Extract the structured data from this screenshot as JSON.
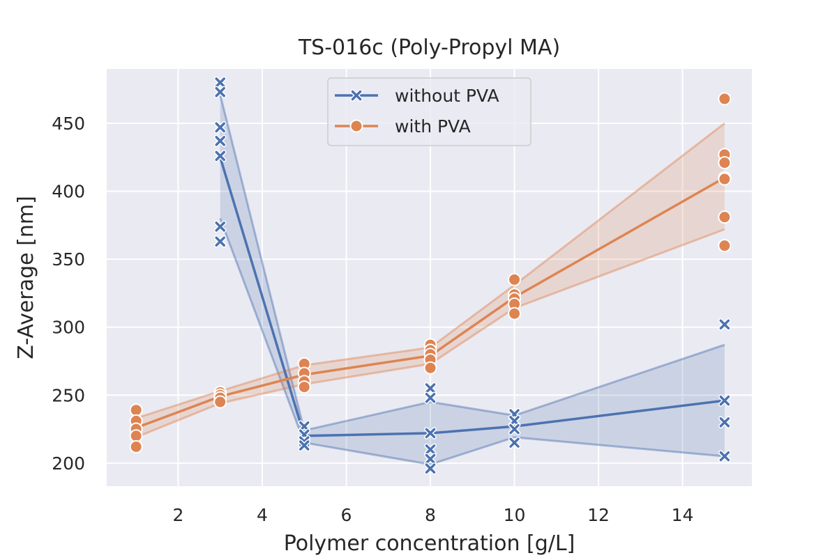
{
  "chart_data": {
    "type": "line",
    "title": "TS-016c (Poly-Propyl MA)",
    "xlabel": "Polymer concentration [g/L]",
    "ylabel": "Z-Average [nm]",
    "xlim": [
      0.3,
      15.65
    ],
    "ylim": [
      183,
      490
    ],
    "x_ticks": [
      2,
      4,
      6,
      8,
      10,
      12,
      14
    ],
    "y_ticks": [
      200,
      250,
      300,
      350,
      400,
      450
    ],
    "grid": true,
    "legend_position": "top-center",
    "series": [
      {
        "name": "without PVA",
        "color": "#4c72b0",
        "marker": "x",
        "x": [
          3,
          5,
          8,
          10,
          15
        ],
        "y": [
          425,
          220,
          222,
          227,
          246
        ],
        "ci_low": [
          380,
          215,
          199,
          219,
          205
        ],
        "ci_high": [
          471,
          224,
          245,
          235,
          287
        ],
        "points": [
          [
            3,
            480
          ],
          [
            3,
            473
          ],
          [
            3,
            447
          ],
          [
            3,
            437
          ],
          [
            3,
            426
          ],
          [
            3,
            374
          ],
          [
            3,
            363
          ],
          [
            5,
            227
          ],
          [
            5,
            221
          ],
          [
            5,
            216
          ],
          [
            5,
            213
          ],
          [
            8,
            255
          ],
          [
            8,
            248
          ],
          [
            8,
            222
          ],
          [
            8,
            210
          ],
          [
            8,
            203
          ],
          [
            8,
            196
          ],
          [
            10,
            236
          ],
          [
            10,
            231
          ],
          [
            10,
            225
          ],
          [
            10,
            215
          ],
          [
            15,
            302
          ],
          [
            15,
            246
          ],
          [
            15,
            230
          ],
          [
            15,
            205
          ]
        ]
      },
      {
        "name": "with PVA",
        "color": "#dd8452",
        "marker": "o",
        "x": [
          1,
          3,
          5,
          8,
          10,
          15
        ],
        "y": [
          226,
          249,
          265,
          279,
          322,
          410
        ],
        "ci_low": [
          219,
          244,
          258,
          273,
          314,
          372
        ],
        "ci_high": [
          233,
          253,
          272,
          285,
          331,
          450
        ],
        "points": [
          [
            1,
            239
          ],
          [
            1,
            231
          ],
          [
            1,
            225
          ],
          [
            1,
            220
          ],
          [
            1,
            212
          ],
          [
            3,
            252
          ],
          [
            3,
            250
          ],
          [
            3,
            248
          ],
          [
            3,
            245
          ],
          [
            5,
            273
          ],
          [
            5,
            266
          ],
          [
            5,
            260
          ],
          [
            5,
            256
          ],
          [
            8,
            287
          ],
          [
            8,
            283
          ],
          [
            8,
            280
          ],
          [
            8,
            276
          ],
          [
            8,
            270
          ],
          [
            10,
            335
          ],
          [
            10,
            324
          ],
          [
            10,
            321
          ],
          [
            10,
            317
          ],
          [
            10,
            310
          ],
          [
            15,
            468
          ],
          [
            15,
            427
          ],
          [
            15,
            421
          ],
          [
            15,
            410
          ],
          [
            15,
            409
          ],
          [
            15,
            381
          ],
          [
            15,
            360
          ]
        ]
      }
    ]
  }
}
